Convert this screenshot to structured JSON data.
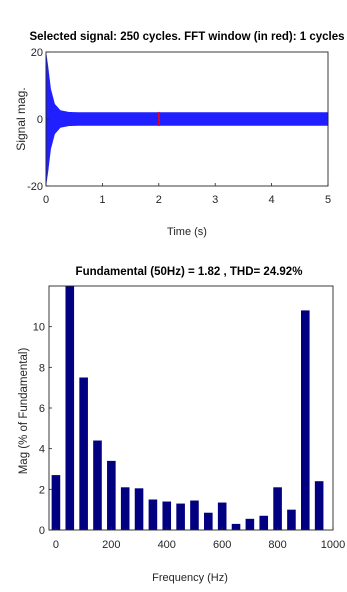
{
  "chart_data": [
    {
      "type": "line",
      "title": "Selected signal: 250 cycles. FFT window (in red): 1 cycles",
      "xlabel": "Time (s)",
      "ylabel": "Signal mag.",
      "xlim": [
        0,
        5
      ],
      "ylim": [
        -20,
        20
      ],
      "xticks": [
        "0",
        "1",
        "2",
        "3",
        "4",
        "5"
      ],
      "yticks": [
        "20",
        "0",
        "-20"
      ],
      "series": [
        {
          "style": "50 Hz oscillating signal envelope",
          "envelope": {
            "t": [
              0,
              0.03,
              0.08,
              0.15,
              0.25,
              0.4,
              0.6,
              1.0,
              2.0,
              5.0
            ],
            "amp": [
              19.5,
              16,
              9,
              4.5,
              2.6,
              2.1,
              2.0,
              2.0,
              2.0,
              2.0
            ]
          },
          "color": "#1f1fff"
        }
      ],
      "highlight": {
        "name": "FFT window",
        "t_start": 2.0,
        "t_end": 2.02,
        "color": "#ff0000"
      },
      "grid": false
    },
    {
      "type": "bar",
      "title": "Fundamental (50Hz) = 1.82 , THD= 24.92%",
      "xlabel": "Frequency (Hz)",
      "ylabel": "Mag (% of Fundamental)",
      "xlim": [
        -25,
        1000
      ],
      "ylim": [
        0,
        12
      ],
      "xticks": [
        "0",
        "200",
        "400",
        "600",
        "800",
        "1000"
      ],
      "yticks": [
        "0",
        "2",
        "4",
        "6",
        "8",
        "10"
      ],
      "x": [
        0,
        50,
        100,
        150,
        200,
        250,
        300,
        350,
        400,
        450,
        500,
        550,
        600,
        650,
        700,
        750,
        800,
        850,
        900,
        950
      ],
      "values": [
        2.7,
        12,
        7.5,
        4.4,
        3.4,
        2.1,
        2.05,
        1.5,
        1.4,
        1.3,
        1.45,
        0.85,
        1.35,
        0.3,
        0.55,
        0.7,
        2.1,
        1.0,
        10.8,
        2.4
      ],
      "color": "#000080",
      "grid": false
    }
  ]
}
